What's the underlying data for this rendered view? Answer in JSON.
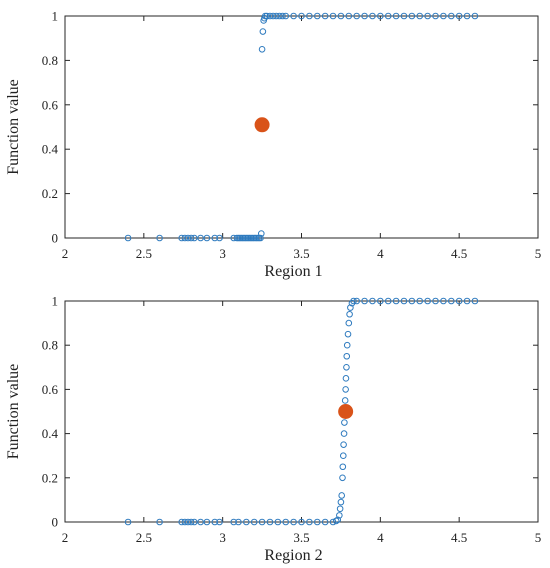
{
  "chart_data": [
    {
      "type": "scatter",
      "title": "",
      "xlabel": "Region 1",
      "ylabel": "Function value",
      "xlim": [
        2,
        5
      ],
      "ylim": [
        0,
        1
      ],
      "xticks": [
        "2",
        "2.5",
        "3",
        "3.5",
        "4",
        "4.5",
        "5"
      ],
      "yticks": [
        "0",
        "0.2",
        "0.4",
        "0.6",
        "0.8",
        "1"
      ],
      "grid": false,
      "legend": "none",
      "series": [
        {
          "marker": "open-circle",
          "color": "#2f7bbf",
          "points": [
            [
              2.4,
              0
            ],
            [
              2.6,
              0
            ],
            [
              2.74,
              0
            ],
            [
              2.76,
              0
            ],
            [
              2.78,
              0
            ],
            [
              2.8,
              0
            ],
            [
              2.82,
              0
            ],
            [
              2.86,
              0
            ],
            [
              2.9,
              0
            ],
            [
              2.95,
              0
            ],
            [
              2.98,
              0
            ],
            [
              3.07,
              0
            ],
            [
              3.09,
              0
            ],
            [
              3.1,
              0
            ],
            [
              3.11,
              0
            ],
            [
              3.12,
              0
            ],
            [
              3.13,
              0
            ],
            [
              3.14,
              0
            ],
            [
              3.15,
              0
            ],
            [
              3.16,
              0
            ],
            [
              3.17,
              0
            ],
            [
              3.18,
              0
            ],
            [
              3.19,
              0
            ],
            [
              3.2,
              0
            ],
            [
              3.21,
              0
            ],
            [
              3.22,
              0
            ],
            [
              3.23,
              0
            ],
            [
              3.24,
              0
            ],
            [
              3.245,
              0.02
            ],
            [
              3.25,
              0.85
            ],
            [
              3.255,
              0.93
            ],
            [
              3.26,
              0.98
            ],
            [
              3.265,
              0.99
            ],
            [
              3.27,
              1
            ],
            [
              3.28,
              1
            ],
            [
              3.3,
              1
            ],
            [
              3.32,
              1
            ],
            [
              3.34,
              1
            ],
            [
              3.36,
              1
            ],
            [
              3.38,
              1
            ],
            [
              3.4,
              1
            ],
            [
              3.45,
              1
            ],
            [
              3.5,
              1
            ],
            [
              3.55,
              1
            ],
            [
              3.6,
              1
            ],
            [
              3.65,
              1
            ],
            [
              3.7,
              1
            ],
            [
              3.75,
              1
            ],
            [
              3.8,
              1
            ],
            [
              3.85,
              1
            ],
            [
              3.9,
              1
            ],
            [
              3.95,
              1
            ],
            [
              4.0,
              1
            ],
            [
              4.05,
              1
            ],
            [
              4.1,
              1
            ],
            [
              4.15,
              1
            ],
            [
              4.2,
              1
            ],
            [
              4.25,
              1
            ],
            [
              4.3,
              1
            ],
            [
              4.35,
              1
            ],
            [
              4.4,
              1
            ],
            [
              4.45,
              1
            ],
            [
              4.5,
              1
            ],
            [
              4.55,
              1
            ],
            [
              4.6,
              1
            ]
          ]
        },
        {
          "marker": "filled-circle",
          "color": "#d95319",
          "points": [
            [
              3.25,
              0.51
            ]
          ]
        }
      ]
    },
    {
      "type": "scatter",
      "title": "",
      "xlabel": "Region 2",
      "ylabel": "Function value",
      "xlim": [
        2,
        5
      ],
      "ylim": [
        0,
        1
      ],
      "xticks": [
        "2",
        "2.5",
        "3",
        "3.5",
        "4",
        "4.5",
        "5"
      ],
      "yticks": [
        "0",
        "0.2",
        "0.4",
        "0.6",
        "0.8",
        "1"
      ],
      "grid": false,
      "legend": "none",
      "series": [
        {
          "marker": "open-circle",
          "color": "#2f7bbf",
          "points": [
            [
              2.4,
              0
            ],
            [
              2.6,
              0
            ],
            [
              2.74,
              0
            ],
            [
              2.76,
              0
            ],
            [
              2.78,
              0
            ],
            [
              2.8,
              0
            ],
            [
              2.82,
              0
            ],
            [
              2.86,
              0
            ],
            [
              2.9,
              0
            ],
            [
              2.95,
              0
            ],
            [
              2.98,
              0
            ],
            [
              3.07,
              0
            ],
            [
              3.1,
              0
            ],
            [
              3.15,
              0
            ],
            [
              3.2,
              0
            ],
            [
              3.25,
              0
            ],
            [
              3.3,
              0
            ],
            [
              3.35,
              0
            ],
            [
              3.4,
              0
            ],
            [
              3.45,
              0
            ],
            [
              3.5,
              0
            ],
            [
              3.55,
              0
            ],
            [
              3.6,
              0
            ],
            [
              3.65,
              0
            ],
            [
              3.7,
              0
            ],
            [
              3.72,
              0.005
            ],
            [
              3.73,
              0.01
            ],
            [
              3.74,
              0.03
            ],
            [
              3.745,
              0.06
            ],
            [
              3.75,
              0.09
            ],
            [
              3.755,
              0.12
            ],
            [
              3.76,
              0.2
            ],
            [
              3.762,
              0.25
            ],
            [
              3.765,
              0.3
            ],
            [
              3.767,
              0.35
            ],
            [
              3.77,
              0.4
            ],
            [
              3.772,
              0.45
            ],
            [
              3.775,
              0.5
            ],
            [
              3.777,
              0.55
            ],
            [
              3.78,
              0.6
            ],
            [
              3.782,
              0.65
            ],
            [
              3.785,
              0.7
            ],
            [
              3.787,
              0.75
            ],
            [
              3.79,
              0.8
            ],
            [
              3.795,
              0.85
            ],
            [
              3.8,
              0.9
            ],
            [
              3.805,
              0.94
            ],
            [
              3.81,
              0.97
            ],
            [
              3.82,
              0.99
            ],
            [
              3.83,
              1
            ],
            [
              3.85,
              1
            ],
            [
              3.9,
              1
            ],
            [
              3.95,
              1
            ],
            [
              4.0,
              1
            ],
            [
              4.05,
              1
            ],
            [
              4.1,
              1
            ],
            [
              4.15,
              1
            ],
            [
              4.2,
              1
            ],
            [
              4.25,
              1
            ],
            [
              4.3,
              1
            ],
            [
              4.35,
              1
            ],
            [
              4.4,
              1
            ],
            [
              4.45,
              1
            ],
            [
              4.5,
              1
            ],
            [
              4.55,
              1
            ],
            [
              4.6,
              1
            ]
          ]
        },
        {
          "marker": "filled-circle",
          "color": "#d95319",
          "points": [
            [
              3.78,
              0.5
            ]
          ]
        }
      ]
    }
  ]
}
